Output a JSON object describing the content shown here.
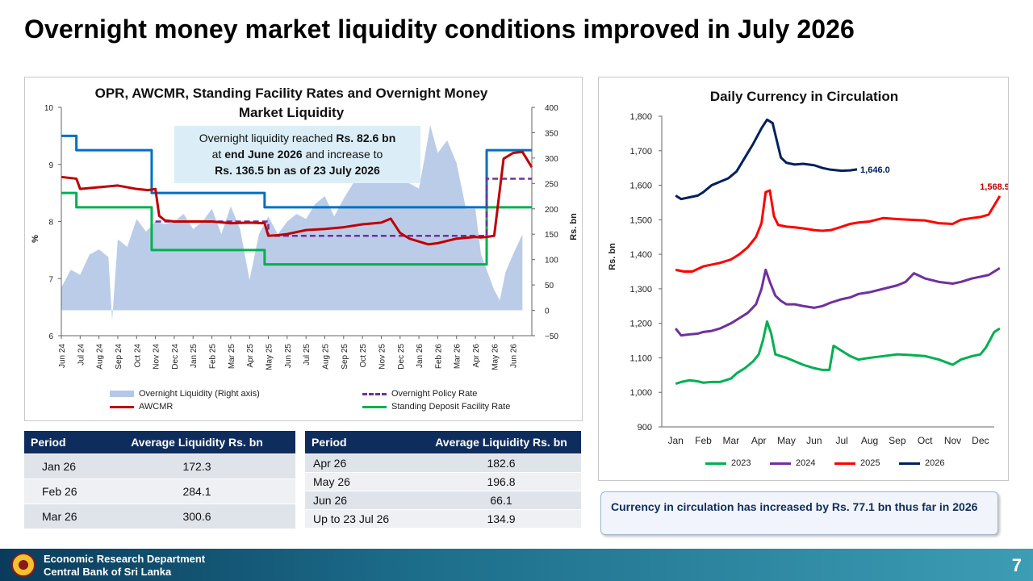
{
  "slide": {
    "title": "Overnight money market liquidity conditions improved in July 2026",
    "page_number": "7"
  },
  "footer": {
    "line1": "Economic Research Department",
    "line2": "Central Bank of Sri Lanka"
  },
  "left_chart": {
    "title": "OPR, AWCMR, Standing Facility Rates and Overnight Money Market Liquidity",
    "callout": {
      "l1": "Overnight liquidity reached ",
      "b1": "Rs. 82.6 bn",
      "l2": "at ",
      "b2": "end June 2026",
      "l3": " and increase to",
      "b3": "Rs. 136.5 bn as of 23 July 2026"
    },
    "legend": {
      "liquidity": "Overnight Liquidity (Right axis)",
      "awcmr": "AWCMR",
      "opr": "Overnight Policy Rate",
      "sdfr": "Standing Deposit Facility Rate"
    }
  },
  "right_chart": {
    "title": "Daily Currency in Circulation",
    "legend": [
      "2023",
      "2024",
      "2025",
      "2026"
    ],
    "end_labels": [
      "1,646.0",
      "1,568.9"
    ]
  },
  "chart_data": [
    {
      "type": "line",
      "title": "OPR, AWCMR, Standing Facility Rates and Overnight Money Market Liquidity",
      "ylabel": "%",
      "y2label": "Rs. bn",
      "ylim": [
        6,
        10
      ],
      "y_ticks": [
        6,
        7,
        8,
        9,
        10
      ],
      "y2lim": [
        -50,
        400
      ],
      "y2_ticks": [
        -50,
        0,
        50,
        100,
        150,
        200,
        250,
        300,
        350,
        400
      ],
      "x_ticks": [
        "Jun 24",
        "Jul 24",
        "Aug 24",
        "Sep 24",
        "Oct 24",
        "Nov 24",
        "Dec 24",
        "Jan 25",
        "Feb 25",
        "Mar 25",
        "Apr 25",
        "May 25",
        "Jun 25",
        "Jul 25",
        "Aug 25",
        "Sep 25",
        "Oct 25",
        "Nov 25",
        "Dec 25",
        "Jan 26",
        "Feb 26",
        "Mar 26",
        "Apr 26",
        "May 26",
        "Jun 26"
      ],
      "legend_position": "bottom",
      "colors": {
        "liquidity": "#b4c7e7",
        "awcmr": "#c00000",
        "opr": "#7030a0",
        "sdfr": "#00b050",
        "slfr": "#0070c0"
      },
      "series": [
        {
          "name": "Overnight Liquidity (Right axis)",
          "type": "area",
          "axis": "right",
          "x": [
            0,
            0.5,
            1,
            1.5,
            2,
            2.5,
            2.7,
            3,
            3.5,
            4,
            4.5,
            5,
            5.5,
            6,
            6.5,
            7,
            7.5,
            8,
            8.5,
            9,
            9.5,
            10,
            10.5,
            11,
            11.5,
            12,
            12.5,
            13,
            13.5,
            14,
            14.5,
            15,
            15.5,
            16,
            16.5,
            17,
            17.5,
            18,
            18.5,
            19,
            19.3,
            19.6,
            20,
            20.5,
            21,
            21.5,
            22,
            22.3,
            22.6,
            23,
            23.3,
            23.6,
            24,
            24.5
          ],
          "values": [
            45,
            80,
            70,
            110,
            120,
            105,
            -20,
            140,
            125,
            180,
            155,
            175,
            170,
            175,
            190,
            160,
            175,
            200,
            150,
            205,
            160,
            60,
            150,
            185,
            150,
            175,
            190,
            180,
            210,
            225,
            185,
            220,
            250,
            270,
            265,
            255,
            300,
            280,
            250,
            240,
            300,
            365,
            310,
            335,
            290,
            200,
            200,
            110,
            80,
            40,
            20,
            75,
            110,
            150
          ]
        },
        {
          "name": "AWCMR",
          "type": "line",
          "axis": "left",
          "x": [
            0,
            0.8,
            1,
            2,
            3,
            4,
            4.6,
            5,
            5.2,
            5.5,
            6,
            7,
            8,
            9,
            10,
            10.8,
            11,
            11.5,
            12,
            13,
            14,
            15,
            16,
            17,
            17.5,
            18,
            18.5,
            19,
            19.5,
            20,
            21,
            22,
            22.3,
            22.6,
            23,
            23.5,
            24,
            24.5,
            25
          ],
          "values": [
            8.78,
            8.75,
            8.57,
            8.6,
            8.63,
            8.57,
            8.55,
            8.57,
            8.1,
            8.02,
            8.0,
            8.0,
            8.0,
            7.97,
            7.98,
            7.97,
            7.75,
            7.76,
            7.78,
            7.85,
            7.87,
            7.9,
            7.95,
            7.98,
            8.05,
            7.8,
            7.7,
            7.65,
            7.6,
            7.62,
            7.7,
            7.73,
            7.72,
            7.73,
            7.75,
            9.1,
            9.2,
            9.22,
            8.95
          ]
        },
        {
          "name": "Overnight Policy Rate",
          "type": "line",
          "axis": "left",
          "x": [
            5,
            11,
            11,
            22.6,
            22.6,
            25
          ],
          "values": [
            8.0,
            8.0,
            7.75,
            7.75,
            8.75,
            8.75
          ]
        },
        {
          "name": "Standing Deposit Facility Rate",
          "type": "line",
          "axis": "left",
          "x": [
            0,
            0.8,
            0.8,
            4.8,
            4.8,
            10.8,
            10.8,
            22.6,
            22.6,
            25
          ],
          "values": [
            8.5,
            8.5,
            8.25,
            8.25,
            7.5,
            7.5,
            7.25,
            7.25,
            8.25,
            8.25
          ]
        },
        {
          "name": "",
          "type": "line",
          "axis": "left",
          "x": [
            0,
            0.8,
            0.8,
            4.8,
            4.8,
            10.8,
            10.8,
            22.6,
            22.6,
            25
          ],
          "values": [
            9.5,
            9.5,
            9.25,
            9.25,
            8.5,
            8.5,
            8.25,
            8.25,
            9.25,
            9.25
          ]
        }
      ]
    },
    {
      "type": "line",
      "title": "Daily Currency in Circulation",
      "ylabel": "Rs. bn",
      "ylim": [
        900,
        1800
      ],
      "y_ticks": [
        900,
        1000,
        1100,
        1200,
        1300,
        1400,
        1500,
        1600,
        1700,
        1800
      ],
      "categories": [
        "Jan",
        "Feb",
        "Mar",
        "Apr",
        "May",
        "Jun",
        "Jul",
        "Aug",
        "Sep",
        "Oct",
        "Nov",
        "Dec"
      ],
      "legend_position": "bottom",
      "series": [
        {
          "name": "2023",
          "color": "#00b050",
          "x": [
            0,
            0.2,
            0.5,
            0.8,
            1,
            1.3,
            1.6,
            2,
            2.2,
            2.5,
            2.8,
            3,
            3.15,
            3.3,
            3.45,
            3.6,
            3.8,
            4,
            4.3,
            4.6,
            5,
            5.3,
            5.55,
            5.7,
            6,
            6.3,
            6.6,
            7,
            7.5,
            8,
            8.5,
            9,
            9.5,
            10,
            10.3,
            10.7,
            11,
            11.2,
            11.5,
            11.7
          ],
          "values": [
            1025,
            1030,
            1035,
            1032,
            1028,
            1030,
            1030,
            1040,
            1055,
            1070,
            1090,
            1110,
            1150,
            1205,
            1170,
            1110,
            1105,
            1100,
            1090,
            1080,
            1070,
            1065,
            1065,
            1135,
            1120,
            1105,
            1095,
            1100,
            1105,
            1110,
            1108,
            1105,
            1095,
            1080,
            1095,
            1105,
            1110,
            1130,
            1175,
            1185
          ]
        },
        {
          "name": "2024",
          "color": "#7030a0",
          "x": [
            0,
            0.2,
            0.5,
            0.8,
            1,
            1.3,
            1.6,
            2,
            2.3,
            2.6,
            2.9,
            3.1,
            3.25,
            3.4,
            3.6,
            3.8,
            4,
            4.3,
            4.6,
            5,
            5.3,
            5.6,
            6,
            6.3,
            6.6,
            7,
            7.5,
            8,
            8.3,
            8.6,
            9,
            9.5,
            10,
            10.3,
            10.7,
            11,
            11.3,
            11.7
          ],
          "values": [
            1185,
            1165,
            1168,
            1170,
            1175,
            1178,
            1185,
            1200,
            1215,
            1230,
            1255,
            1300,
            1355,
            1320,
            1280,
            1265,
            1255,
            1255,
            1250,
            1245,
            1250,
            1260,
            1270,
            1275,
            1285,
            1290,
            1300,
            1310,
            1320,
            1345,
            1330,
            1320,
            1315,
            1320,
            1330,
            1335,
            1340,
            1360
          ]
        },
        {
          "name": "2025",
          "color": "#ff0000",
          "x": [
            0,
            0.3,
            0.6,
            1,
            1.3,
            1.6,
            2,
            2.3,
            2.6,
            2.9,
            3.1,
            3.25,
            3.4,
            3.55,
            3.7,
            4,
            4.3,
            4.6,
            5,
            5.3,
            5.6,
            6,
            6.3,
            6.6,
            7,
            7.5,
            8,
            8.5,
            9,
            9.5,
            10,
            10.3,
            10.7,
            11,
            11.3,
            11.7
          ],
          "values": [
            1355,
            1350,
            1350,
            1365,
            1370,
            1375,
            1385,
            1400,
            1420,
            1450,
            1490,
            1580,
            1585,
            1510,
            1485,
            1480,
            1478,
            1475,
            1470,
            1468,
            1470,
            1480,
            1488,
            1492,
            1495,
            1505,
            1502,
            1500,
            1498,
            1490,
            1488,
            1500,
            1505,
            1508,
            1515,
            1568.9
          ]
        },
        {
          "name": "2026",
          "color": "#002060",
          "x": [
            0,
            0.2,
            0.5,
            0.8,
            1,
            1.3,
            1.6,
            1.9,
            2.2,
            2.5,
            2.8,
            3.1,
            3.3,
            3.5,
            3.65,
            3.8,
            4,
            4.3,
            4.6,
            5,
            5.3,
            5.6,
            6,
            6.3,
            6.55
          ],
          "values": [
            1570,
            1560,
            1565,
            1570,
            1580,
            1600,
            1610,
            1620,
            1640,
            1680,
            1720,
            1765,
            1790,
            1780,
            1730,
            1680,
            1665,
            1660,
            1662,
            1658,
            1650,
            1645,
            1642,
            1643,
            1646.0
          ]
        }
      ]
    }
  ],
  "table_left": {
    "headers": [
      "Period",
      "Average Liquidity Rs. bn"
    ],
    "rows": [
      {
        "period": "Jan 26",
        "value": "172.3"
      },
      {
        "period": "Feb 26",
        "value": "284.1"
      },
      {
        "period": "Mar 26",
        "value": "300.6"
      }
    ]
  },
  "table_right": {
    "headers": [
      "Period",
      "Average Liquidity Rs. bn"
    ],
    "rows": [
      {
        "period": "Apr 26",
        "value": "182.6"
      },
      {
        "period": "May 26",
        "value": "196.8"
      },
      {
        "period": "Jun 26",
        "value": "66.1"
      },
      {
        "period": "Up to 23 Jul 26",
        "value": "134.9"
      }
    ]
  },
  "note": "Currency in circulation has increased by Rs. 77.1 bn thus far in 2026"
}
